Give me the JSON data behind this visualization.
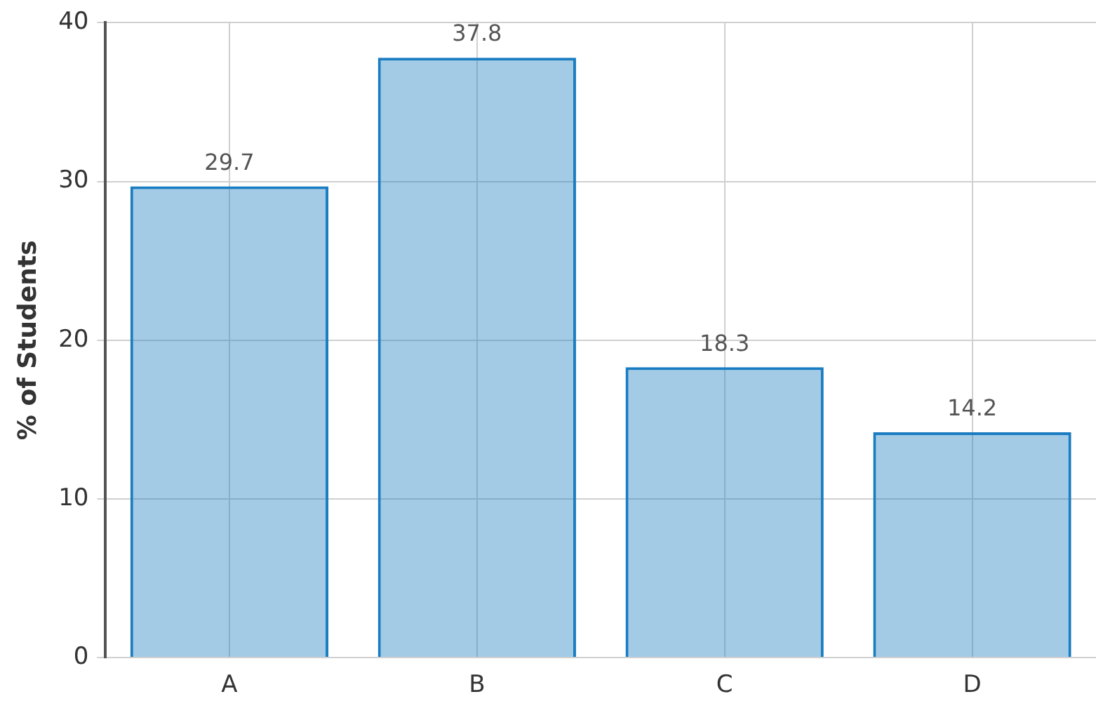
{
  "chart_data": {
    "type": "bar",
    "ylabel": "% of Students",
    "categories": [
      "A",
      "B",
      "C",
      "D"
    ],
    "values": [
      29.7,
      37.8,
      18.3,
      14.2
    ],
    "color": "#1a7cc1",
    "ylim": [
      0,
      40
    ],
    "yticks": [
      0,
      10,
      20,
      30,
      40
    ],
    "grid": true,
    "data_labels": true,
    "legend": false
  }
}
